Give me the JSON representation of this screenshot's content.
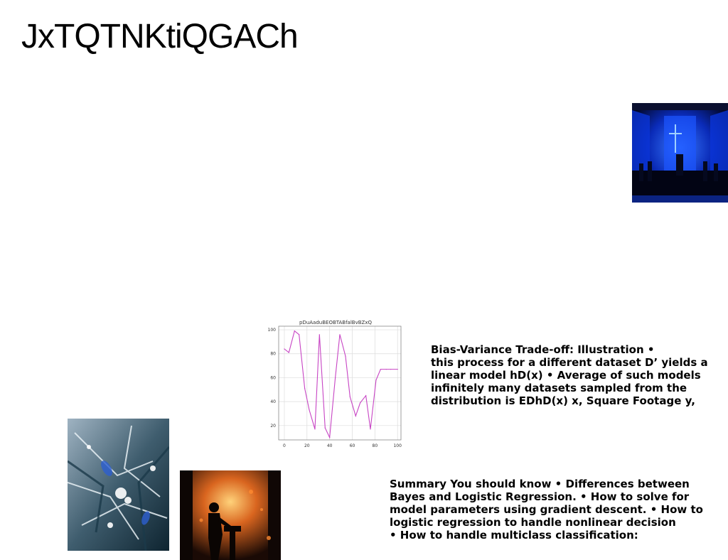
{
  "page": {
    "title": "JxTQTNKtiQGACh"
  },
  "images": {
    "hall": {
      "name": "blue-lit-hall-photo"
    },
    "frost": {
      "name": "frosted-pine-branches-photo"
    },
    "dj": {
      "name": "dj-silhouette-photo"
    }
  },
  "chart_data": {
    "type": "line",
    "title": "pDuAaduBEOBTABfalBvBZxQ",
    "xlabel": "",
    "ylabel": "",
    "xlim": [
      -5,
      103
    ],
    "ylim": [
      8,
      103
    ],
    "xticks": [
      0,
      20,
      40,
      60,
      80,
      100
    ],
    "yticks": [
      20,
      40,
      60,
      80,
      100
    ],
    "grid": true,
    "color": "#c744c4",
    "x": [
      0,
      4,
      9,
      13,
      18,
      22,
      27,
      31,
      36,
      40,
      45,
      49,
      54,
      58,
      63,
      67,
      72,
      76,
      81,
      85,
      90,
      94,
      100
    ],
    "y": [
      84,
      81,
      99,
      96,
      51,
      33,
      17,
      96,
      18,
      10,
      60,
      96,
      78,
      44,
      28,
      39,
      45,
      17,
      58,
      67,
      67,
      67,
      67
    ]
  },
  "text_blocks": {
    "bias": {
      "lines": [
        "Bias-Variance Trade-off: Illustration •",
        "this process for a different dataset D’ yields a",
        "linear model hD(x) • Average of such models",
        "infinitely many datasets sampled from the",
        "distribution is EDhD(x) x, Square Footage y,"
      ]
    },
    "summary": {
      "lines": [
        "Summary You should know • Differences between",
        "Bayes and Logistic Regression. • How to solve for",
        "model parameters using gradient descent. • How to",
        "logistic regression to handle nonlinear decision",
        "• How to handle multiclass classification:"
      ]
    }
  }
}
